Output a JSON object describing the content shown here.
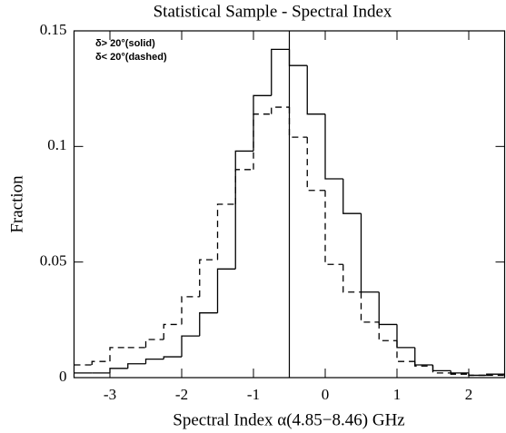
{
  "chart_data": {
    "type": "histogram",
    "title": "Statistical Sample - Spectral Index",
    "x_label": "Spectral Index α(4.85−8.46) GHz",
    "y_label": "Fraction",
    "bins": [
      -3.5,
      -3.25,
      -3,
      -2.75,
      -2.5,
      -2.25,
      -2,
      -1.75,
      -1.5,
      -1.25,
      -1,
      -0.75,
      -0.5,
      -0.25,
      0,
      0.25,
      0.5,
      0.75,
      1,
      1.25,
      1.5,
      1.75,
      2,
      2.25,
      2.5
    ],
    "series": [
      {
        "name": "δ> 20°(solid)",
        "color": "#000000",
        "line_style": "solid",
        "values": [
          0.002,
          0.002,
          0.004,
          0.006,
          0.008,
          0.009,
          0.018,
          0.028,
          0.047,
          0.098,
          0.122,
          0.142,
          0.135,
          0.114,
          0.086,
          0.071,
          0.037,
          0.023,
          0.013,
          0.0055,
          0.003,
          0.002,
          0.001,
          0.0015
        ]
      },
      {
        "name": "δ< 20°(dashed)",
        "color": "#000000",
        "line_style": "dashed",
        "values": [
          0.0055,
          0.007,
          0.013,
          0.013,
          0.0165,
          0.023,
          0.035,
          0.051,
          0.075,
          0.09,
          0.114,
          0.117,
          0.104,
          0.081,
          0.049,
          0.037,
          0.024,
          0.016,
          0.007,
          0.005,
          0.002,
          0.0015,
          0.001,
          0.001
        ]
      }
    ],
    "vline": -0.5,
    "xlim": [
      -3.5,
      2.5
    ],
    "xticks": [
      -3,
      -2,
      -1,
      0,
      1,
      2
    ],
    "ylim": [
      0,
      0.15
    ],
    "yticks": [
      0,
      0.05,
      0.1,
      0.15
    ]
  }
}
